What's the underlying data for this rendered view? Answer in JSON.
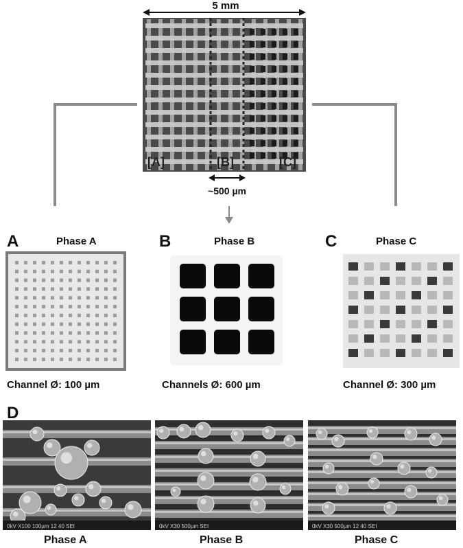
{
  "top": {
    "width_label": "5 mm",
    "region_a": "[A]",
    "region_b": "[B]",
    "region_c": "[C]",
    "gap_label": "~500 µm"
  },
  "panels": [
    {
      "letter": "A",
      "title": "Phase A",
      "caption": "Channel Ø: 100 µm"
    },
    {
      "letter": "B",
      "title": "Phase B",
      "caption": "Channels Ø: 600 µm"
    },
    {
      "letter": "C",
      "title": "Phase C",
      "caption": "Channel Ø: 300 µm"
    }
  ],
  "sem": {
    "letter": "D",
    "captions": [
      "Phase A",
      "Phase B",
      "Phase C"
    ],
    "micro_labels": [
      "0kV  X100  100µm  12 40 SEI",
      "0kV  X30  500µm  SEI",
      "0kV  X30  500µm  12 40 SEI"
    ]
  },
  "colors": {
    "arrow": "#8a8a8a",
    "scaffold": "#f2f2f2",
    "channel": "#0a0a0a"
  }
}
